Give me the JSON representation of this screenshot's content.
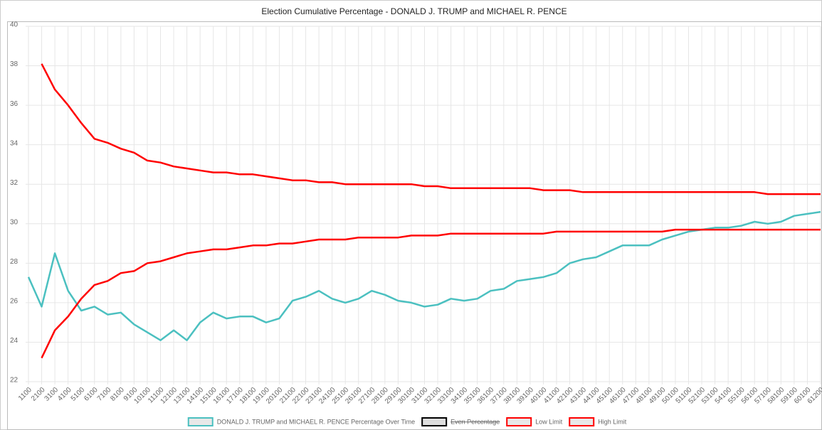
{
  "chart_data": {
    "type": "line",
    "title": "Election Cumulative Percentage - DONALD J. TRUMP and MICHAEL R. PENCE",
    "categories": [
      1100,
      2100,
      3100,
      4100,
      5100,
      6100,
      7100,
      8100,
      9100,
      10100,
      11100,
      12100,
      13100,
      14100,
      15100,
      16100,
      17100,
      18100,
      19100,
      20100,
      21100,
      22100,
      23100,
      24100,
      25100,
      26100,
      27100,
      28100,
      29100,
      30100,
      31100,
      32100,
      33100,
      34100,
      35100,
      36100,
      37100,
      38100,
      39100,
      40100,
      41100,
      42100,
      43100,
      44100,
      45100,
      46100,
      47100,
      48100,
      49100,
      50100,
      51100,
      52100,
      53100,
      54100,
      55100,
      56100,
      57100,
      58100,
      59100,
      60100,
      61200
    ],
    "series": [
      {
        "name": "DONALD J. TRUMP and MICHAEL R. PENCE Percentage Over Time",
        "color": "#4bc0c0",
        "values": [
          27.3,
          25.8,
          28.5,
          26.6,
          25.6,
          25.8,
          25.4,
          25.5,
          24.9,
          24.5,
          24.1,
          24.6,
          24.1,
          25.0,
          25.5,
          25.2,
          25.3,
          25.3,
          25.0,
          25.2,
          26.1,
          26.3,
          26.6,
          26.2,
          26.0,
          26.2,
          26.6,
          26.4,
          26.1,
          26.0,
          25.8,
          25.9,
          26.2,
          26.1,
          26.2,
          26.6,
          26.7,
          27.1,
          27.2,
          27.3,
          27.5,
          28.0,
          28.2,
          28.3,
          28.6,
          28.9,
          28.9,
          28.9,
          29.2,
          29.4,
          29.6,
          29.7,
          29.8,
          29.8,
          29.9,
          30.1,
          30.0,
          30.1,
          30.4,
          30.5,
          30.6
        ]
      },
      {
        "name": "Even Percentage",
        "color": "#000000",
        "hidden": true,
        "values": [
          null,
          null,
          null,
          null,
          null,
          null,
          null,
          null,
          null,
          null,
          null,
          null,
          null,
          null,
          null,
          null,
          null,
          null,
          null,
          null,
          null,
          null,
          null,
          null,
          null,
          null,
          null,
          null,
          null,
          null,
          null,
          null,
          null,
          null,
          null,
          null,
          null,
          null,
          null,
          null,
          null,
          null,
          null,
          null,
          null,
          null,
          null,
          null,
          null,
          null,
          null,
          null,
          null,
          null,
          null,
          null,
          null,
          null,
          null,
          null,
          null
        ]
      },
      {
        "name": "Low Limit",
        "color": "#ff0000",
        "values": [
          null,
          23.2,
          24.6,
          25.3,
          26.2,
          26.9,
          27.1,
          27.5,
          27.6,
          28.0,
          28.1,
          28.3,
          28.5,
          28.6,
          28.7,
          28.7,
          28.8,
          28.9,
          28.9,
          29.0,
          29.0,
          29.1,
          29.2,
          29.2,
          29.2,
          29.3,
          29.3,
          29.3,
          29.3,
          29.4,
          29.4,
          29.4,
          29.5,
          29.5,
          29.5,
          29.5,
          29.5,
          29.5,
          29.5,
          29.5,
          29.6,
          29.6,
          29.6,
          29.6,
          29.6,
          29.6,
          29.6,
          29.6,
          29.6,
          29.7,
          29.7,
          29.7,
          29.7,
          29.7,
          29.7,
          29.7,
          29.7,
          29.7,
          29.7,
          29.7,
          29.7
        ]
      },
      {
        "name": "High Limit",
        "color": "#ff0000",
        "values": [
          null,
          38.1,
          36.8,
          36.0,
          35.1,
          34.3,
          34.1,
          33.8,
          33.6,
          33.2,
          33.1,
          32.9,
          32.8,
          32.7,
          32.6,
          32.6,
          32.5,
          32.5,
          32.4,
          32.3,
          32.2,
          32.2,
          32.1,
          32.1,
          32.0,
          32.0,
          32.0,
          32.0,
          32.0,
          32.0,
          31.9,
          31.9,
          31.8,
          31.8,
          31.8,
          31.8,
          31.8,
          31.8,
          31.8,
          31.7,
          31.7,
          31.7,
          31.6,
          31.6,
          31.6,
          31.6,
          31.6,
          31.6,
          31.6,
          31.6,
          31.6,
          31.6,
          31.6,
          31.6,
          31.6,
          31.6,
          31.5,
          31.5,
          31.5,
          31.5,
          31.5
        ]
      }
    ],
    "ylim": [
      22,
      40
    ],
    "yticks": [
      22,
      24,
      26,
      28,
      30,
      32,
      34,
      36,
      38,
      40
    ],
    "grid": true
  }
}
